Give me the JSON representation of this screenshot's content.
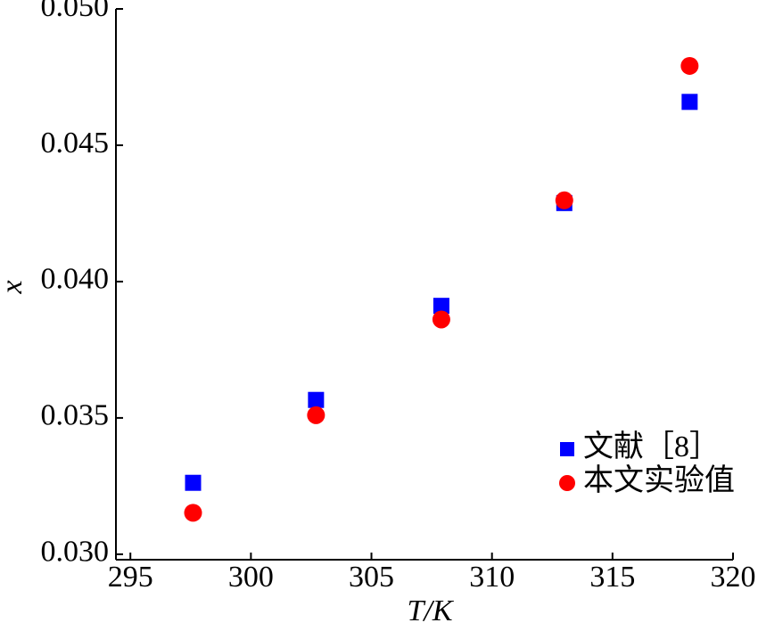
{
  "chart_data": {
    "type": "scatter",
    "xlabel": "T/K",
    "ylabel": "x",
    "xlim": [
      294.4,
      320
    ],
    "xticks": [
      295,
      300,
      305,
      310,
      315,
      320
    ],
    "ylim": [
      0.0298,
      0.05
    ],
    "yticks": [
      {
        "value": 0.03,
        "label": "0.030"
      },
      {
        "value": 0.035,
        "label": "0.035"
      },
      {
        "value": 0.04,
        "label": "0.040"
      },
      {
        "value": 0.045,
        "label": "0.045"
      },
      {
        "value": 0.05,
        "label": "0.050"
      }
    ],
    "legend": "lower right",
    "series": [
      {
        "name": "文献［8］",
        "color": "#0000ff",
        "marker": "square",
        "x": [
          297.6,
          302.7,
          307.9,
          313.0,
          318.2
        ],
        "values": [
          0.03262,
          0.03566,
          0.03911,
          0.04288,
          0.04659
        ]
      },
      {
        "name": "本文实验值",
        "color": "#ff0000",
        "marker": "circle",
        "x": [
          297.6,
          302.7,
          307.9,
          313.0,
          318.2
        ],
        "values": [
          0.03152,
          0.0351,
          0.03861,
          0.04298,
          0.04791
        ]
      }
    ]
  }
}
